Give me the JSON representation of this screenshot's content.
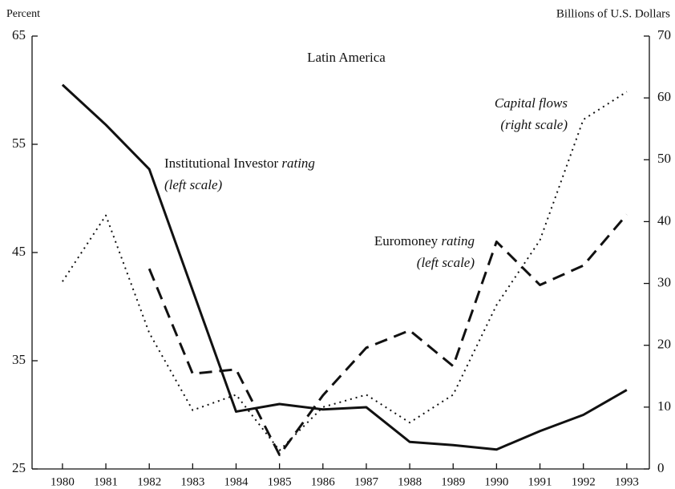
{
  "chart_data": {
    "type": "line",
    "title": "Latin America",
    "ylabel": "Percent",
    "y2label": "Billions of U.S. Dollars",
    "x": [
      1980,
      1981,
      1982,
      1983,
      1984,
      1985,
      1986,
      1987,
      1988,
      1989,
      1990,
      1991,
      1992,
      1993
    ],
    "xlim": [
      1979.3,
      1993.52
    ],
    "xticks": [
      1980,
      1981,
      1982,
      1983,
      1984,
      1985,
      1986,
      1987,
      1988,
      1989,
      1990,
      1991,
      1992,
      1993
    ],
    "ylim": [
      25,
      65
    ],
    "yticks": [
      25,
      35,
      45,
      55,
      65
    ],
    "y2lim": [
      0,
      70
    ],
    "y2ticks": [
      0,
      10,
      20,
      30,
      40,
      50,
      60,
      70
    ],
    "series": [
      {
        "color": "#111111",
        "style": "solid",
        "axis": "y",
        "values": [
          60.5,
          56.8,
          52.7,
          41.5,
          30.3,
          31.0,
          30.5,
          30.7,
          27.5,
          27.2,
          26.8,
          28.5,
          30.0,
          32.3
        ]
      },
      {
        "color": "#111111",
        "style": "dashed",
        "axis": "y",
        "values": [
          null,
          null,
          43.5,
          33.8,
          34.2,
          26.3,
          31.8,
          36.2,
          37.8,
          34.5,
          46.0,
          42.0,
          43.8,
          48.5
        ]
      },
      {
        "color": "#111111",
        "style": "dotted",
        "axis": "y2",
        "values": [
          30.3,
          41,
          22,
          9.5,
          12,
          3,
          10,
          12,
          7.5,
          12,
          26.5,
          37,
          56.5,
          61
        ]
      }
    ],
    "annotations": [
      {
        "lines": [
          [
            {
              "text": "Institutional Investor"
            },
            {
              "text": " rating",
              "italic": true
            }
          ],
          [
            {
              "text": "(left scale)",
              "italic": true
            }
          ]
        ]
      },
      {
        "lines": [
          [
            {
              "text": "Euromoney"
            },
            {
              "text": " rating",
              "italic": true
            }
          ],
          [
            {
              "text": "(left scale)",
              "italic": true
            }
          ]
        ]
      },
      {
        "lines": [
          [
            {
              "text": "Capital flows",
              "italic": true
            }
          ],
          [
            {
              "text": "(right scale)",
              "italic": true
            }
          ]
        ]
      }
    ]
  }
}
